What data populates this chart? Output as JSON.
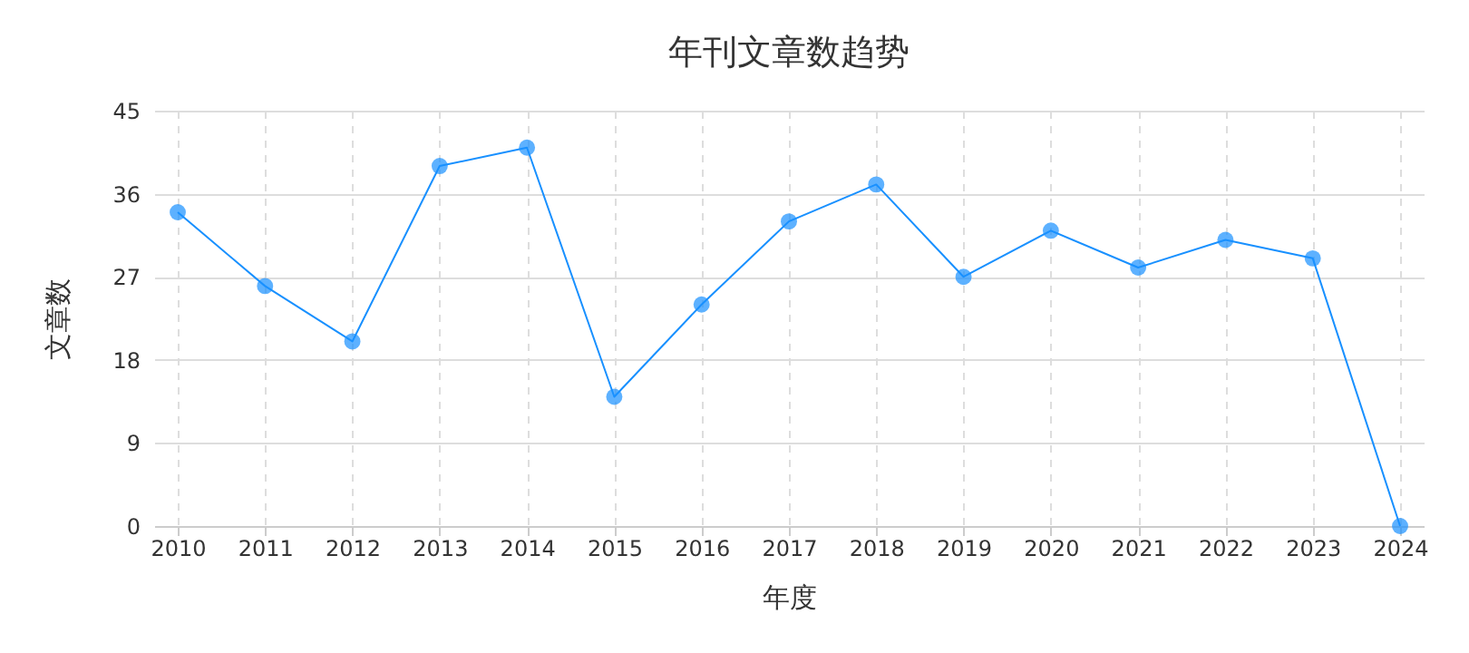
{
  "chart_data": {
    "type": "line",
    "title": "年刊文章数趋势",
    "xlabel": "年度",
    "ylabel": "文章数",
    "categories": [
      "2010",
      "2011",
      "2012",
      "2013",
      "2014",
      "2015",
      "2016",
      "2017",
      "2018",
      "2019",
      "2020",
      "2021",
      "2022",
      "2023",
      "2024"
    ],
    "series": [
      {
        "color": "#1890ff",
        "values": [
          34,
          26,
          20,
          39,
          41,
          14,
          24,
          33,
          37,
          27,
          32,
          28,
          31,
          29,
          0
        ]
      }
    ],
    "ylim": [
      0,
      45
    ],
    "yticks": [
      0,
      9,
      18,
      27,
      36,
      45
    ],
    "grid": true,
    "marker": "circle",
    "legend": false
  }
}
